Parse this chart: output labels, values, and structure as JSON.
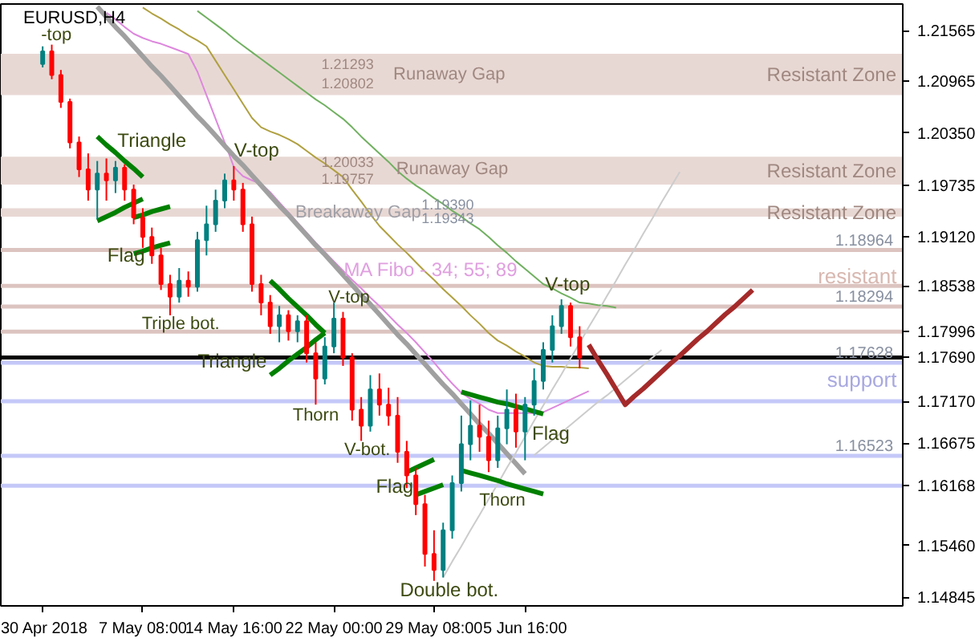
{
  "chart_data": {
    "type": "candlestick",
    "title": "EURUSD,H4",
    "categories": [
      "30 Apr 2018",
      null,
      null,
      null,
      null,
      null,
      null,
      null,
      null,
      null,
      null,
      "7 May 08:00",
      null,
      null,
      null,
      null,
      null,
      null,
      null,
      null,
      null,
      "14 May 16:00",
      null,
      null,
      null,
      null,
      null,
      null,
      null,
      null,
      null,
      null,
      "22 May 00:00",
      null,
      null,
      null,
      null,
      null,
      null,
      null,
      null,
      null,
      null,
      "29 May 08:00",
      null,
      null,
      null,
      null,
      null,
      null,
      null,
      null,
      null,
      "5 Jun 16:00",
      null,
      null,
      null,
      null,
      null,
      null,
      null,
      null,
      null,
      null,
      null,
      null,
      null,
      null,
      null,
      null,
      null,
      null,
      null,
      null,
      null,
      null,
      null,
      null,
      null,
      null,
      null,
      null,
      null,
      null,
      null,
      null,
      null,
      null,
      null,
      null,
      null,
      null,
      null,
      null,
      null
    ],
    "ohlc": [
      [
        1.2117,
        1.2138,
        1.2113,
        1.2132
      ],
      [
        1.2132,
        1.214,
        1.2099,
        1.2104
      ],
      [
        1.2104,
        1.211,
        1.2065,
        1.2072
      ],
      [
        1.2072,
        1.2076,
        1.2017,
        1.2024
      ],
      [
        1.2024,
        1.2031,
        1.1983,
        1.1992
      ],
      [
        1.1992,
        1.2011,
        1.1955,
        1.1968
      ],
      [
        1.1968,
        1.2002,
        1.1933,
        1.1987
      ],
      [
        1.1987,
        1.2005,
        1.1955,
        1.1979
      ],
      [
        1.1979,
        1.2002,
        1.1964,
        1.1994
      ],
      [
        1.1994,
        1.1998,
        1.1955,
        1.1968
      ],
      [
        1.1968,
        1.1974,
        1.1927,
        1.1935
      ],
      [
        1.1935,
        1.1946,
        1.1899,
        1.1912
      ],
      [
        1.1912,
        1.1923,
        1.188,
        1.189
      ],
      [
        1.189,
        1.1899,
        1.1849,
        1.1856
      ],
      [
        1.1856,
        1.1867,
        1.1819,
        1.1841
      ],
      [
        1.1841,
        1.1875,
        1.1834,
        1.186
      ],
      [
        1.186,
        1.1871,
        1.1841,
        1.1853
      ],
      [
        1.1853,
        1.1918,
        1.1847,
        1.1908
      ],
      [
        1.1908,
        1.1949,
        1.189,
        1.1927
      ],
      [
        1.1927,
        1.1968,
        1.1918,
        1.1955
      ],
      [
        1.1955,
        1.1987,
        1.1946,
        1.1979
      ],
      [
        1.1979,
        1.1996,
        1.1955,
        1.1968
      ],
      [
        1.1968,
        1.1976,
        1.1918,
        1.1927
      ],
      [
        1.1927,
        1.1936,
        1.1847,
        1.1856
      ],
      [
        1.1856,
        1.1867,
        1.1819,
        1.1834
      ],
      [
        1.1834,
        1.1843,
        1.1797,
        1.1806
      ],
      [
        1.1806,
        1.183,
        1.1787,
        1.1819
      ],
      [
        1.1819,
        1.1825,
        1.1789,
        1.18
      ],
      [
        1.18,
        1.1819,
        1.1787,
        1.1812
      ],
      [
        1.1812,
        1.1819,
        1.1763,
        1.1774
      ],
      [
        1.1774,
        1.1787,
        1.1713,
        1.1744
      ],
      [
        1.1744,
        1.1793,
        1.1737,
        1.1782
      ],
      [
        1.1782,
        1.1834,
        1.1774,
        1.1815
      ],
      [
        1.1815,
        1.1823,
        1.1759,
        1.1769
      ],
      [
        1.1769,
        1.1774,
        1.1694,
        1.1707
      ],
      [
        1.1707,
        1.1722,
        1.167,
        1.1688
      ],
      [
        1.1688,
        1.1748,
        1.1681,
        1.1731
      ],
      [
        1.1731,
        1.175,
        1.17,
        1.1713
      ],
      [
        1.1713,
        1.1733,
        1.1688,
        1.17
      ],
      [
        1.17,
        1.1722,
        1.1644,
        1.1657
      ],
      [
        1.1657,
        1.167,
        1.1614,
        1.1629
      ],
      [
        1.1629,
        1.1638,
        1.1582,
        1.1595
      ],
      [
        1.1595,
        1.1606,
        1.1521,
        1.1536
      ],
      [
        1.1536,
        1.1564,
        1.1504,
        1.1517
      ],
      [
        1.1517,
        1.1573,
        1.1508,
        1.1564
      ],
      [
        1.1564,
        1.1629,
        1.1554,
        1.162
      ],
      [
        1.162,
        1.17,
        1.161,
        1.1666
      ],
      [
        1.1666,
        1.1718,
        1.1647,
        1.1688
      ],
      [
        1.1688,
        1.1713,
        1.1657,
        1.1675
      ],
      [
        1.1675,
        1.1694,
        1.1633,
        1.1647
      ],
      [
        1.1647,
        1.17,
        1.1638,
        1.1685
      ],
      [
        1.1685,
        1.1731,
        1.1666,
        1.1707
      ],
      [
        1.1707,
        1.1726,
        1.1662,
        1.1681
      ],
      [
        1.1681,
        1.1722,
        1.1647,
        1.1713
      ],
      [
        1.1713,
        1.1756,
        1.17,
        1.1741
      ],
      [
        1.1741,
        1.1787,
        1.1731,
        1.1778
      ],
      [
        1.1778,
        1.1819,
        1.1763,
        1.1806
      ],
      [
        1.1806,
        1.1838,
        1.1797,
        1.183
      ],
      [
        1.183,
        1.1834,
        1.1782,
        1.1793
      ],
      [
        1.1793,
        1.1806,
        1.1756,
        1.1769
      ],
      null,
      null,
      null,
      null,
      null,
      null,
      null,
      null,
      null,
      null,
      null,
      null,
      null,
      null,
      null,
      null,
      null,
      null,
      null,
      null,
      null,
      null,
      null,
      null,
      null,
      null,
      null,
      null,
      null,
      null,
      null,
      null,
      null,
      null,
      null
    ],
    "colors": [
      "#008080",
      "#ff0000",
      "#ff0000",
      "#ff0000",
      "#ff0000",
      "#ff0000",
      "#008080",
      "#ff0000",
      "#008080",
      "#ff0000",
      "#ff0000",
      "#ff0000",
      "#ff0000",
      "#ff0000",
      "#ff0000",
      "#008080",
      "#ff0000",
      "#008080",
      "#008080",
      "#008080",
      "#008080",
      "#ff0000",
      "#ff0000",
      "#ff0000",
      "#ff0000",
      "#ff0000",
      "#008080",
      "#ff0000",
      "#008080",
      "#ff0000",
      "#ff0000",
      "#008080",
      "#008080",
      "#ff0000",
      "#ff0000",
      "#ff0000",
      "#008080",
      "#ff0000",
      "#ff0000",
      "#ff0000",
      "#ff0000",
      "#ff0000",
      "#ff0000",
      "#ff0000",
      "#008080",
      "#008080",
      "#008080",
      "#008080",
      "#ff0000",
      "#ff0000",
      "#008080",
      "#008080",
      "#ff0000",
      "#008080",
      "#008080",
      "#008080",
      "#008080",
      "#008080",
      "#ff0000",
      "#ff0000",
      null,
      null,
      null,
      null,
      null,
      null,
      null,
      null,
      null,
      null,
      null,
      null,
      null,
      null,
      null,
      null,
      null,
      null,
      null,
      null,
      null,
      null,
      null,
      null,
      null,
      null,
      null,
      null,
      null,
      null,
      null,
      null,
      null,
      null,
      null
    ],
    "series": [
      {
        "type": "line",
        "color": "#dd88dd",
        "values": [
          null,
          null,
          null,
          null,
          null,
          null,
          null,
          1.2178,
          1.217,
          1.2161,
          1.2153,
          1.2148,
          1.2144,
          1.2141,
          1.2137,
          1.2133,
          1.2129,
          1.2108,
          1.208,
          1.2052,
          1.2024,
          1.1995,
          1.1984,
          1.1979,
          1.1975,
          1.1965,
          1.1953,
          1.1941,
          1.1929,
          1.1917,
          1.1905,
          1.1894,
          1.1883,
          1.1872,
          1.1861,
          1.1851,
          1.184,
          1.183,
          1.1819,
          1.1808,
          1.1798,
          1.1787,
          1.1775,
          1.1763,
          1.175,
          1.1738,
          1.1727,
          1.172,
          1.1714,
          1.1707,
          1.1703,
          1.1703,
          1.1703,
          1.1703,
          1.1703,
          1.1704,
          1.1709,
          1.1714,
          1.1719,
          1.1724,
          1.1729,
          null,
          null,
          null,
          null,
          null,
          null,
          null,
          null,
          null,
          null,
          null,
          null,
          null,
          null,
          null,
          null,
          null,
          null,
          null,
          null,
          null,
          null,
          null,
          null,
          null,
          null,
          null,
          null,
          null,
          null,
          null,
          null,
          null,
          null
        ]
      },
      {
        "type": "line",
        "color": "#b0a040",
        "values": [
          null,
          null,
          null,
          null,
          null,
          null,
          null,
          null,
          null,
          null,
          null,
          1.2184,
          1.2177,
          1.2171,
          1.2164,
          1.2158,
          1.2151,
          1.2145,
          1.2138,
          1.2121,
          1.2104,
          1.2087,
          1.207,
          1.2053,
          1.2042,
          1.2037,
          1.2033,
          1.2028,
          1.2022,
          1.2014,
          1.2006,
          1.1999,
          1.1991,
          1.1983,
          1.1968,
          1.1954,
          1.1939,
          1.1925,
          1.1914,
          1.1903,
          1.1893,
          1.1882,
          1.1871,
          1.1861,
          1.185,
          1.184,
          1.183,
          1.1819,
          1.1809,
          1.1798,
          1.1789,
          1.1783,
          1.1776,
          1.177,
          1.1763,
          1.1759,
          1.1758,
          1.1758,
          1.1757,
          1.1757,
          1.1756,
          null,
          null,
          null,
          null,
          null,
          null,
          null,
          null,
          null,
          null,
          null,
          null,
          null,
          null,
          null,
          null,
          null,
          null,
          null,
          null,
          null,
          null,
          null,
          null,
          null,
          null,
          null,
          null,
          null,
          null,
          null,
          null,
          null,
          null
        ]
      },
      {
        "type": "line",
        "color": "#70b060",
        "values": [
          null,
          null,
          null,
          null,
          null,
          null,
          null,
          null,
          null,
          null,
          null,
          null,
          null,
          null,
          null,
          null,
          null,
          1.218,
          1.2172,
          1.2164,
          1.2156,
          1.2147,
          1.2139,
          1.2131,
          1.2123,
          1.2115,
          1.2107,
          1.2099,
          1.2091,
          1.2083,
          1.2075,
          1.2068,
          1.206,
          1.2052,
          1.2042,
          1.2031,
          1.2021,
          1.2011,
          1.2001,
          1.199,
          1.1981,
          1.1973,
          1.1966,
          1.1958,
          1.1951,
          1.1943,
          1.1936,
          1.1928,
          1.1921,
          1.1912,
          1.1902,
          1.1893,
          1.1883,
          1.1874,
          1.1865,
          1.1856,
          1.1851,
          1.1845,
          1.184,
          1.1834,
          1.1833,
          1.1831,
          1.183,
          1.1828,
          null,
          null,
          null,
          null,
          null,
          null,
          null,
          null,
          null,
          null,
          null,
          null,
          null,
          null,
          null,
          null,
          null,
          null,
          null,
          null,
          null,
          null,
          null,
          null,
          null,
          null,
          null,
          null,
          null,
          null,
          null
        ]
      },
      {
        "type": "line",
        "color": "#a0a0a0",
        "values": [
          null,
          null,
          null,
          null,
          null,
          null,
          1.2185,
          1.2173,
          1.2161,
          1.215,
          1.2138,
          1.2126,
          1.2114,
          1.2103,
          1.2091,
          1.2079,
          1.2067,
          1.2055,
          1.2044,
          1.2032,
          1.202,
          1.2008,
          1.1997,
          1.1985,
          1.1973,
          1.1961,
          1.1949,
          1.1938,
          1.1926,
          1.1914,
          1.1902,
          1.1891,
          1.1879,
          1.1867,
          1.1855,
          1.1843,
          1.1832,
          1.182,
          1.1808,
          1.1796,
          1.1785,
          1.1773,
          1.1761,
          1.1749,
          1.1737,
          1.1726,
          1.1714,
          1.1702,
          1.169,
          1.1679,
          1.1667,
          1.1655,
          1.1643,
          1.1631,
          null,
          null,
          null,
          null,
          null,
          null,
          null,
          null,
          null,
          null,
          null,
          null,
          null,
          null,
          null,
          null,
          null,
          null,
          null,
          null,
          null,
          null,
          null,
          null,
          null,
          null,
          null,
          null,
          null,
          null,
          null,
          null,
          null,
          null,
          null,
          null,
          null,
          null,
          null,
          null,
          null
        ]
      },
      {
        "type": "line",
        "color": "#cccccc",
        "values": [
          null,
          null,
          null,
          null,
          null,
          null,
          null,
          null,
          null,
          null,
          null,
          null,
          null,
          null,
          null,
          null,
          null,
          null,
          null,
          null,
          null,
          null,
          null,
          null,
          null,
          null,
          null,
          null,
          null,
          null,
          null,
          null,
          null,
          null,
          null,
          null,
          null,
          null,
          null,
          null,
          null,
          null,
          null,
          null,
          1.1508,
          1.1527,
          1.1545,
          1.1564,
          1.1582,
          1.1601,
          1.1619,
          1.1638,
          1.1656,
          1.1675,
          1.1694,
          1.1712,
          1.1731,
          1.1749,
          1.1768,
          1.1786,
          1.1805,
          1.1823,
          1.1842,
          1.186,
          1.1879,
          1.1897,
          1.1916,
          1.1934,
          1.1953,
          1.1971,
          1.1989,
          null,
          null,
          null,
          null,
          null,
          null,
          null,
          null,
          null,
          null,
          null,
          null,
          null,
          null,
          null,
          null,
          null,
          null,
          null,
          null,
          null,
          null,
          null,
          null
        ]
      },
      {
        "type": "line",
        "color": "#cccccc",
        "values": [
          null,
          null,
          null,
          null,
          null,
          null,
          null,
          null,
          null,
          null,
          null,
          null,
          null,
          null,
          null,
          null,
          null,
          null,
          null,
          null,
          null,
          null,
          null,
          null,
          null,
          null,
          null,
          null,
          null,
          null,
          null,
          null,
          null,
          null,
          null,
          null,
          null,
          null,
          null,
          null,
          null,
          null,
          null,
          null,
          null,
          null,
          null,
          null,
          null,
          null,
          null,
          null,
          null,
          null,
          1.1653,
          1.1662,
          1.1671,
          1.168,
          1.1689,
          1.1698,
          1.1707,
          1.1716,
          1.1724,
          1.1733,
          1.1742,
          1.1751,
          1.176,
          1.1769,
          1.1778,
          null,
          null,
          null,
          null,
          null,
          null,
          null,
          null,
          null,
          null,
          null,
          null,
          null,
          null,
          null,
          null,
          null,
          null,
          null,
          null,
          null,
          null,
          null,
          null,
          null,
          null
        ]
      },
      {
        "type": "line",
        "color": "#008000",
        "values": [
          null,
          null,
          null,
          null,
          null,
          null,
          1.2031,
          1.2021,
          1.2012,
          1.2002,
          1.1993,
          1.1983,
          null,
          null,
          null,
          null,
          null,
          null,
          null,
          null,
          null,
          null,
          null,
          null,
          null,
          null,
          null,
          null,
          null,
          null,
          null,
          null,
          null,
          null,
          null,
          null,
          null,
          null,
          null,
          null,
          null,
          null,
          null,
          null,
          null,
          null,
          null,
          null,
          null,
          null,
          null,
          null,
          null,
          null,
          null,
          null,
          null,
          null,
          null,
          null,
          null,
          null,
          null,
          null,
          null,
          null,
          null,
          null,
          null,
          null,
          null,
          null,
          null,
          null,
          null,
          null,
          null,
          null,
          null,
          null,
          null,
          null,
          null,
          null,
          null,
          null,
          null,
          null,
          null,
          null,
          null,
          null,
          null,
          null,
          null
        ]
      },
      {
        "type": "line",
        "color": "#008000",
        "values": [
          null,
          null,
          null,
          null,
          null,
          null,
          1.1931,
          1.1936,
          1.1941,
          1.1947,
          1.1952,
          1.1957,
          null,
          null,
          null,
          null,
          null,
          null,
          null,
          null,
          null,
          null,
          null,
          null,
          null,
          null,
          null,
          null,
          null,
          null,
          null,
          null,
          null,
          null,
          null,
          null,
          null,
          null,
          null,
          null,
          null,
          null,
          null,
          null,
          null,
          null,
          null,
          null,
          null,
          null,
          null,
          null,
          null,
          null,
          null,
          null,
          null,
          null,
          null,
          null,
          null,
          null,
          null,
          null,
          null,
          null,
          null,
          null,
          null,
          null,
          null,
          null,
          null,
          null,
          null,
          null,
          null,
          null,
          null,
          null,
          null,
          null,
          null,
          null,
          null,
          null,
          null,
          null,
          null,
          null,
          null,
          null,
          null,
          null,
          null
        ]
      },
      {
        "type": "line",
        "color": "#008000",
        "values": [
          null,
          null,
          null,
          null,
          null,
          null,
          null,
          null,
          null,
          null,
          1.1935,
          1.1938,
          1.1942,
          1.1945,
          1.1948,
          null,
          null,
          null,
          null,
          null,
          null,
          null,
          null,
          null,
          null,
          null,
          null,
          null,
          null,
          null,
          null,
          null,
          null,
          null,
          null,
          null,
          null,
          null,
          null,
          null,
          null,
          null,
          null,
          null,
          null,
          null,
          null,
          null,
          null,
          null,
          null,
          null,
          null,
          null,
          null,
          null,
          null,
          null,
          null,
          null,
          null,
          null,
          null,
          null,
          null,
          null,
          null,
          null,
          null,
          null,
          null,
          null,
          null,
          null,
          null,
          null,
          null,
          null,
          null,
          null,
          null,
          null,
          null,
          null,
          null,
          null,
          null,
          null,
          null,
          null,
          null,
          null,
          null,
          null,
          null
        ]
      },
      {
        "type": "line",
        "color": "#008000",
        "values": [
          null,
          null,
          null,
          null,
          null,
          null,
          null,
          null,
          null,
          null,
          1.1892,
          1.1895,
          1.1899,
          1.1902,
          1.1905,
          null,
          null,
          null,
          null,
          null,
          null,
          null,
          null,
          null,
          null,
          null,
          null,
          null,
          null,
          null,
          null,
          null,
          null,
          null,
          null,
          null,
          null,
          null,
          null,
          null,
          null,
          null,
          null,
          null,
          null,
          null,
          null,
          null,
          null,
          null,
          null,
          null,
          null,
          null,
          null,
          null,
          null,
          null,
          null,
          null,
          null,
          null,
          null,
          null,
          null,
          null,
          null,
          null,
          null,
          null,
          null,
          null,
          null,
          null,
          null,
          null,
          null,
          null,
          null,
          null,
          null,
          null,
          null,
          null,
          null,
          null,
          null,
          null,
          null,
          null,
          null,
          null,
          null,
          null,
          null
        ]
      },
      {
        "type": "line",
        "color": "#008000",
        "values": [
          null,
          null,
          null,
          null,
          null,
          null,
          null,
          null,
          null,
          null,
          null,
          null,
          null,
          null,
          null,
          null,
          null,
          null,
          null,
          null,
          null,
          null,
          null,
          null,
          null,
          1.186,
          1.185,
          1.1839,
          1.1829,
          1.1819,
          1.1808,
          1.1798,
          null,
          null,
          null,
          null,
          null,
          null,
          null,
          null,
          null,
          null,
          null,
          null,
          null,
          null,
          null,
          null,
          null,
          null,
          null,
          null,
          null,
          null,
          null,
          null,
          null,
          null,
          null,
          null,
          null,
          null,
          null,
          null,
          null,
          null,
          null,
          null,
          null,
          null,
          null,
          null,
          null,
          null,
          null,
          null,
          null,
          null,
          null,
          null,
          null,
          null,
          null,
          null,
          null,
          null,
          null,
          null,
          null,
          null,
          null,
          null,
          null,
          null,
          null
        ]
      },
      {
        "type": "line",
        "color": "#008000",
        "values": [
          null,
          null,
          null,
          null,
          null,
          null,
          null,
          null,
          null,
          null,
          null,
          null,
          null,
          null,
          null,
          null,
          null,
          null,
          null,
          null,
          null,
          null,
          null,
          null,
          null,
          1.1748,
          1.1756,
          1.1765,
          1.1773,
          1.1781,
          1.179,
          1.1798,
          null,
          null,
          null,
          null,
          null,
          null,
          null,
          null,
          null,
          null,
          null,
          null,
          null,
          null,
          null,
          null,
          null,
          null,
          null,
          null,
          null,
          null,
          null,
          null,
          null,
          null,
          null,
          null,
          null,
          null,
          null,
          null,
          null,
          null,
          null,
          null,
          null,
          null,
          null,
          null,
          null,
          null,
          null,
          null,
          null,
          null,
          null,
          null,
          null,
          null,
          null,
          null,
          null,
          null,
          null,
          null,
          null,
          null,
          null,
          null,
          null,
          null,
          null
        ]
      },
      {
        "type": "line",
        "color": "#008000",
        "values": [
          null,
          null,
          null,
          null,
          null,
          null,
          null,
          null,
          null,
          null,
          null,
          null,
          null,
          null,
          null,
          null,
          null,
          null,
          null,
          null,
          null,
          null,
          null,
          null,
          null,
          null,
          null,
          null,
          null,
          null,
          null,
          null,
          null,
          null,
          null,
          null,
          null,
          null,
          null,
          null,
          1.1633,
          1.1638,
          1.1643,
          1.1648,
          null,
          null,
          null,
          null,
          null,
          null,
          null,
          null,
          null,
          null,
          null,
          null,
          null,
          null,
          null,
          null,
          null,
          null,
          null,
          null,
          null,
          null,
          null,
          null,
          null,
          null,
          null,
          null,
          null,
          null,
          null,
          null,
          null,
          null,
          null,
          null,
          null,
          null,
          null,
          null,
          null,
          null,
          null,
          null,
          null,
          null,
          null,
          null,
          null,
          null,
          null
        ]
      },
      {
        "type": "line",
        "color": "#008000",
        "values": [
          null,
          null,
          null,
          null,
          null,
          null,
          null,
          null,
          null,
          null,
          null,
          null,
          null,
          null,
          null,
          null,
          null,
          null,
          null,
          null,
          null,
          null,
          null,
          null,
          null,
          null,
          null,
          null,
          null,
          null,
          null,
          null,
          null,
          null,
          null,
          null,
          null,
          null,
          null,
          null,
          null,
          1.1606,
          1.161,
          1.1614,
          1.1618,
          null,
          null,
          null,
          null,
          null,
          null,
          null,
          null,
          null,
          null,
          null,
          null,
          null,
          null,
          null,
          null,
          null,
          null,
          null,
          null,
          null,
          null,
          null,
          null,
          null,
          null,
          null,
          null,
          null,
          null,
          null,
          null,
          null,
          null,
          null,
          null,
          null,
          null,
          null,
          null,
          null,
          null,
          null,
          null,
          null,
          null,
          null,
          null,
          null,
          null
        ]
      },
      {
        "type": "line",
        "color": "#008000",
        "values": [
          null,
          null,
          null,
          null,
          null,
          null,
          null,
          null,
          null,
          null,
          null,
          null,
          null,
          null,
          null,
          null,
          null,
          null,
          null,
          null,
          null,
          null,
          null,
          null,
          null,
          null,
          null,
          null,
          null,
          null,
          null,
          null,
          null,
          null,
          null,
          null,
          null,
          null,
          null,
          null,
          null,
          null,
          null,
          null,
          null,
          null,
          1.1728,
          1.1725,
          1.1722,
          1.1719,
          1.1716,
          1.1714,
          1.1711,
          1.1708,
          1.1705,
          1.1702,
          null,
          null,
          null,
          null,
          null,
          null,
          null,
          null,
          null,
          null,
          null,
          null,
          null,
          null,
          null,
          null,
          null,
          null,
          null,
          null,
          null,
          null,
          null,
          null,
          null,
          null,
          null,
          null,
          null,
          null,
          null,
          null,
          null,
          null,
          null,
          null,
          null,
          null,
          null
        ]
      },
      {
        "type": "line",
        "color": "#008000",
        "values": [
          null,
          null,
          null,
          null,
          null,
          null,
          null,
          null,
          null,
          null,
          null,
          null,
          null,
          null,
          null,
          null,
          null,
          null,
          null,
          null,
          null,
          null,
          null,
          null,
          null,
          null,
          null,
          null,
          null,
          null,
          null,
          null,
          null,
          null,
          null,
          null,
          null,
          null,
          null,
          null,
          null,
          null,
          null,
          null,
          null,
          null,
          1.1635,
          1.1632,
          1.1629,
          1.1626,
          1.1623,
          1.1619,
          1.1616,
          1.1613,
          1.161,
          1.1607,
          null,
          null,
          null,
          null,
          null,
          null,
          null,
          null,
          null,
          null,
          null,
          null,
          null,
          null,
          null,
          null,
          null,
          null,
          null,
          null,
          null,
          null,
          null,
          null,
          null,
          null,
          null,
          null,
          null,
          null,
          null,
          null,
          null,
          null,
          null,
          null,
          null,
          null,
          null
        ]
      },
      {
        "type": "line",
        "color": "#a52a2a",
        "values": [
          null,
          null,
          null,
          null,
          null,
          null,
          null,
          null,
          null,
          null,
          null,
          null,
          null,
          null,
          null,
          null,
          null,
          null,
          null,
          null,
          null,
          null,
          null,
          null,
          null,
          null,
          null,
          null,
          null,
          null,
          null,
          null,
          null,
          null,
          null,
          null,
          null,
          null,
          null,
          null,
          null,
          null,
          null,
          null,
          null,
          null,
          null,
          null,
          null,
          null,
          null,
          null,
          null,
          null,
          null,
          null,
          null,
          null,
          null,
          null,
          1.1784,
          1.1766,
          1.1749,
          1.1731,
          1.1713,
          1.1723,
          1.1732,
          1.1742,
          1.1752,
          1.1762,
          1.1771,
          1.1781,
          1.1791,
          1.18,
          1.181,
          1.182,
          1.1829,
          1.1839,
          1.1849,
          null,
          null,
          null,
          null,
          null,
          null,
          null,
          null,
          null,
          null,
          null,
          null,
          null,
          null,
          null,
          null
        ]
      }
    ],
    "ylim": [
      1.14743,
      1.21882
    ],
    "yticks": [
      {
        "value": 1.21565,
        "label": "1.21565"
      },
      {
        "value": 1.20965,
        "label": "1.20965"
      },
      {
        "value": 1.2035,
        "label": "1.20350"
      },
      {
        "value": 1.19735,
        "label": "1.19735"
      },
      {
        "value": 1.1912,
        "label": "1.19120"
      },
      {
        "value": 1.18538,
        "label": "1.18538"
      },
      {
        "value": 1.17996,
        "label": "1.17996"
      },
      {
        "value": 1.1769,
        "label": "1.17690"
      },
      {
        "value": 1.1717,
        "label": "1.17170"
      },
      {
        "value": 1.16675,
        "label": "1.16675"
      },
      {
        "value": 1.16168,
        "label": "1.16168"
      },
      {
        "value": 1.1546,
        "label": "1.15460"
      },
      {
        "value": 1.14845,
        "label": "1.14845"
      }
    ],
    "bands": [
      {
        "axis": "y",
        "from": 1.20802,
        "to": 1.21293,
        "label": "Resistant Zone",
        "color": "#e8d8d4"
      },
      {
        "axis": "y",
        "from": 1.1974,
        "to": 1.2007,
        "label": "Resistant Zone",
        "color": "#e8d8d4"
      },
      {
        "axis": "y",
        "from": 1.1936,
        "to": 1.1946,
        "label": "Resistant Zone",
        "color": "#e8d8d4"
      }
    ],
    "ref_lines": [
      {
        "axis": "y",
        "value": 1.18964,
        "label": "1.18964",
        "color": "#dcc4c0"
      },
      {
        "axis": "y",
        "value": 1.18538,
        "color": "#dcc4c0"
      },
      {
        "axis": "y",
        "value": 1.18294,
        "label": "1.18294",
        "color": "#dcc4c0"
      },
      {
        "axis": "y",
        "value": 1.17996,
        "color": "#dcc4c0"
      },
      {
        "axis": "y",
        "value": 1.1769,
        "color": "#000000"
      },
      {
        "axis": "y",
        "value": 1.17628,
        "label": "1.17628",
        "color": "#c4c8f8"
      },
      {
        "axis": "y",
        "value": 1.1717,
        "color": "#c4c8f8"
      },
      {
        "axis": "y",
        "value": 1.16523,
        "label": "1.16523",
        "color": "#c4c8f8"
      },
      {
        "axis": "y",
        "value": 1.16168,
        "color": "#c4c8f8"
      }
    ],
    "annotations": [
      "-top",
      "Triangle",
      "V-top",
      "Flag",
      "Triple bot.",
      "V-top",
      {
        "text": "Triangle",
        "y": 1.1765
      },
      "Thorn",
      "V-bot.",
      "Flag",
      "Double bot.",
      "Thorn",
      "Flag",
      "V-top",
      "MA Fibo - 34; 55; 89",
      "1.21293",
      "1.20802",
      "Runaway Gap",
      "1.20033",
      "1.19757",
      "Runaway Gap",
      "Breakaway Gap",
      "1.19390",
      "1.19343",
      "resistant",
      "support"
    ]
  }
}
